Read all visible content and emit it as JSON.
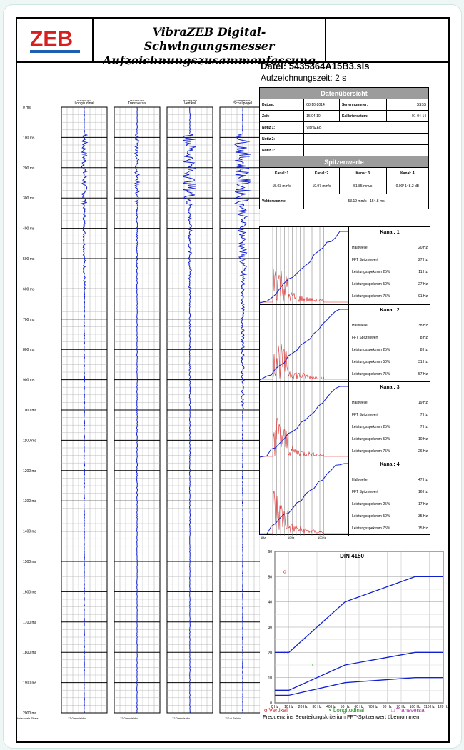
{
  "header": {
    "logo_text": "ZEB",
    "title_line1": "VibraZEB Digital-Schwingungsmesser",
    "title_line2": "Aufzeichnungszusammenfassung"
  },
  "file": {
    "name": "Datei: 5435364A15B3.sis",
    "record_time": "Aufzeichnungszeit: 2 s"
  },
  "time_axis": [
    "0 ms",
    "100 ms",
    "200 ms",
    "300 ms",
    "400 ms",
    "500 ms",
    "600 ms",
    "700 ms",
    "800 ms",
    "900 ms",
    "1000 ms",
    "1100 ms",
    "1200 ms",
    "1300 ms",
    "1400 ms",
    "1500 ms",
    "1600 ms",
    "1700 ms",
    "1800 ms",
    "1900 ms",
    "2000 ms"
  ],
  "channels": [
    {
      "l1": "Kanal 1",
      "l2": "Geophon",
      "l3": "Longitudinal",
      "scale": "12.0 mm/s/div"
    },
    {
      "l1": "Kanal 2",
      "l2": "Geophon",
      "l3": "Transversal",
      "scale": "12.0 mm/s/div"
    },
    {
      "l1": "Kanal 3",
      "l2": "Geophon",
      "l3": "Vertikal",
      "scale": "12.0 mm/s/div"
    },
    {
      "l1": "Kanal 4",
      "l2": "Mikrophon",
      "l3": "Schallpegel",
      "scale": "110.0 Pa/div"
    }
  ],
  "scale_label": "Horizontale Skala:",
  "overview": {
    "title": "Datenübersicht",
    "datum_label": "Datum:",
    "datum": "08-10-2014",
    "serial_label": "Seriennummer:",
    "serial": "SSSS",
    "zeit_label": "Zeit:",
    "zeit": "15:04:10",
    "calib_label": "Kalibrierdatum:",
    "calib": "01-04-14",
    "notiz1_label": "Notiz 1:",
    "notiz1": "VibraZEB",
    "notiz2_label": "Notiz 2:",
    "notiz3_label": "Notiz 3:"
  },
  "peaks": {
    "title": "Spitzenwerte",
    "k1_label": "Kanal: 1",
    "k2_label": "Kanal: 2",
    "k3_label": "Kanal: 3",
    "k4_label": "Kanal: 4",
    "k1": "15.03 mm/s",
    "k2": "19.97 mm/s",
    "k3": "51.85 mm/s",
    "k4": "0.00/ 148.2 dB",
    "vector_label": "Vektorsumme:",
    "vector": "53.19 mm/s - 154.8 ms"
  },
  "spectra": [
    {
      "title": "Kanal: 1",
      "halb": "20 Hz",
      "fft": "27 Hz",
      "p25": "11 Hz",
      "p50": "27 Hz",
      "p75": "91 Hz"
    },
    {
      "title": "Kanal: 2",
      "halb": "38 Hz",
      "fft": "8 Hz",
      "p25": "8 Hz",
      "p50": "31 Hz",
      "p75": "57 Hz"
    },
    {
      "title": "Kanal: 3",
      "halb": "19 Hz",
      "fft": "7 Hz",
      "p25": "7 Hz",
      "p50": "10 Hz",
      "p75": "26 Hz"
    },
    {
      "title": "Kanal: 4",
      "halb": "47 Hz",
      "fft": "16 Hz",
      "p25": "17 Hz",
      "p50": "35 Hz",
      "p75": "75 Hz"
    }
  ],
  "spectra_labels": {
    "halb": "Halbwelle",
    "fft": "FFT Spitzenwert",
    "p25": "Leistungsspektrum 25%",
    "p50": "Leistungsspektrum 50%",
    "p75": "Leistungsspektrum 75%"
  },
  "spectra_axis": [
    "1Hz",
    "10Hz",
    "100Hz"
  ],
  "chart_data": {
    "type": "scatter",
    "title": "DIN 4150",
    "xlabel": "",
    "ylabel": "",
    "xlim": [
      0,
      120
    ],
    "ylim": [
      0,
      60
    ],
    "x_ticks": [
      "0 Hz",
      "10 Hz",
      "20 Hz",
      "30 Hz",
      "40 Hz",
      "50 Hz",
      "60 Hz",
      "70 Hz",
      "80 Hz",
      "90 Hz",
      "100 Hz",
      "110 Hz",
      "120 Hz"
    ],
    "y_ticks": [
      "0",
      "10",
      "20",
      "30",
      "40",
      "50",
      "60"
    ],
    "limit_lines": [
      {
        "x": [
          0,
          10,
          50,
          100,
          120
        ],
        "y": [
          20,
          20,
          40,
          50,
          50
        ]
      },
      {
        "x": [
          0,
          10,
          50,
          100,
          120
        ],
        "y": [
          5,
          5,
          15,
          20,
          20
        ]
      },
      {
        "x": [
          0,
          10,
          50,
          100,
          120
        ],
        "y": [
          3,
          3,
          8,
          10,
          10
        ]
      }
    ],
    "points": [
      {
        "name": "Vertikal",
        "x": 7,
        "y": 52,
        "symbol": "o",
        "color": "#e02020"
      },
      {
        "name": "Longitudinal",
        "x": 27,
        "y": 15,
        "symbol": "x",
        "color": "#20c020"
      },
      {
        "name": "Transversal",
        "x": 8,
        "y": 20,
        "symbol": "□",
        "color": "#d020d0"
      }
    ]
  },
  "legend": {
    "vertikal": "o  Vertikal",
    "longitudinal": "×  Longitudinal",
    "transversal": "□  Transversal",
    "note": "Frequenz ins Beurteilungskriterium FFT-Spitzenwert übernommen"
  }
}
